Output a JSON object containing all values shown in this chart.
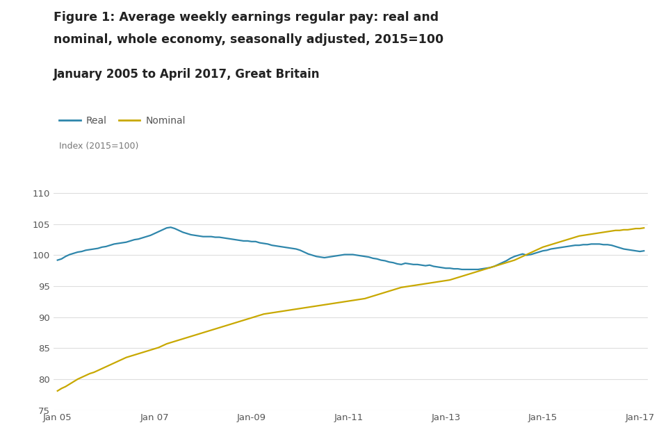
{
  "title_line1": "Figure 1: Average weekly earnings regular pay: real and",
  "title_line2": "nominal, whole economy, seasonally adjusted, 2015=100",
  "subtitle": "January 2005 to April 2017, Great Britain",
  "ylabel": "Index (2015=100)",
  "ylabel_color": "#777777",
  "background_color": "#ffffff",
  "real_color": "#2e86ab",
  "nominal_color": "#c8a800",
  "title_color": "#222222",
  "subtitle_color": "#222222",
  "tick_color": "#555555",
  "grid_color": "#dddddd",
  "ylim": [
    75,
    112
  ],
  "yticks": [
    75,
    80,
    85,
    90,
    95,
    100,
    105,
    110
  ],
  "xtick_labels": [
    "Jan 05",
    "Jan 07",
    "Jan-09",
    "Jan-11",
    "Jan-13",
    "Jan-15",
    "Jan-17"
  ],
  "xtick_positions": [
    0,
    24,
    48,
    72,
    96,
    120,
    144
  ],
  "real_data": [
    99.2,
    99.4,
    99.8,
    100.1,
    100.3,
    100.5,
    100.6,
    100.8,
    100.9,
    101.0,
    101.1,
    101.3,
    101.4,
    101.6,
    101.8,
    101.9,
    102.0,
    102.1,
    102.3,
    102.5,
    102.6,
    102.8,
    103.0,
    103.2,
    103.5,
    103.8,
    104.1,
    104.4,
    104.5,
    104.3,
    104.0,
    103.7,
    103.5,
    103.3,
    103.2,
    103.1,
    103.0,
    103.0,
    103.0,
    102.9,
    102.9,
    102.8,
    102.7,
    102.6,
    102.5,
    102.4,
    102.3,
    102.3,
    102.2,
    102.2,
    102.0,
    101.9,
    101.8,
    101.6,
    101.5,
    101.4,
    101.3,
    101.2,
    101.1,
    101.0,
    100.8,
    100.5,
    100.2,
    100.0,
    99.8,
    99.7,
    99.6,
    99.7,
    99.8,
    99.9,
    100.0,
    100.1,
    100.1,
    100.1,
    100.0,
    99.9,
    99.8,
    99.7,
    99.5,
    99.4,
    99.2,
    99.1,
    98.9,
    98.8,
    98.6,
    98.5,
    98.7,
    98.6,
    98.5,
    98.5,
    98.4,
    98.3,
    98.4,
    98.2,
    98.1,
    98.0,
    97.9,
    97.9,
    97.8,
    97.8,
    97.7,
    97.7,
    97.7,
    97.7,
    97.7,
    97.8,
    97.9,
    98.0,
    98.2,
    98.5,
    98.8,
    99.1,
    99.5,
    99.8,
    100.0,
    100.2,
    100.0,
    100.1,
    100.3,
    100.5,
    100.7,
    100.8,
    101.0,
    101.1,
    101.2,
    101.3,
    101.4,
    101.5,
    101.6,
    101.6,
    101.7,
    101.7,
    101.8,
    101.8,
    101.8,
    101.7,
    101.7,
    101.6,
    101.4,
    101.2,
    101.0,
    100.9,
    100.8,
    100.7,
    100.6,
    100.7
  ],
  "nominal_data": [
    78.1,
    78.5,
    78.8,
    79.2,
    79.6,
    80.0,
    80.3,
    80.6,
    80.9,
    81.1,
    81.4,
    81.7,
    82.0,
    82.3,
    82.6,
    82.9,
    83.2,
    83.5,
    83.7,
    83.9,
    84.1,
    84.3,
    84.5,
    84.7,
    84.9,
    85.1,
    85.4,
    85.7,
    85.9,
    86.1,
    86.3,
    86.5,
    86.7,
    86.9,
    87.1,
    87.3,
    87.5,
    87.7,
    87.9,
    88.1,
    88.3,
    88.5,
    88.7,
    88.9,
    89.1,
    89.3,
    89.5,
    89.7,
    89.9,
    90.1,
    90.3,
    90.5,
    90.6,
    90.7,
    90.8,
    90.9,
    91.0,
    91.1,
    91.2,
    91.3,
    91.4,
    91.5,
    91.6,
    91.7,
    91.8,
    91.9,
    92.0,
    92.1,
    92.2,
    92.3,
    92.4,
    92.5,
    92.6,
    92.7,
    92.8,
    92.9,
    93.0,
    93.2,
    93.4,
    93.6,
    93.8,
    94.0,
    94.2,
    94.4,
    94.6,
    94.8,
    94.9,
    95.0,
    95.1,
    95.2,
    95.3,
    95.4,
    95.5,
    95.6,
    95.7,
    95.8,
    95.9,
    96.0,
    96.2,
    96.4,
    96.6,
    96.8,
    97.0,
    97.2,
    97.4,
    97.6,
    97.8,
    98.0,
    98.2,
    98.4,
    98.6,
    98.8,
    99.0,
    99.2,
    99.5,
    99.8,
    100.1,
    100.4,
    100.7,
    101.0,
    101.3,
    101.5,
    101.7,
    101.9,
    102.1,
    102.3,
    102.5,
    102.7,
    102.9,
    103.1,
    103.2,
    103.3,
    103.4,
    103.5,
    103.6,
    103.7,
    103.8,
    103.9,
    104.0,
    104.0,
    104.1,
    104.1,
    104.2,
    104.3,
    104.3,
    104.4
  ]
}
